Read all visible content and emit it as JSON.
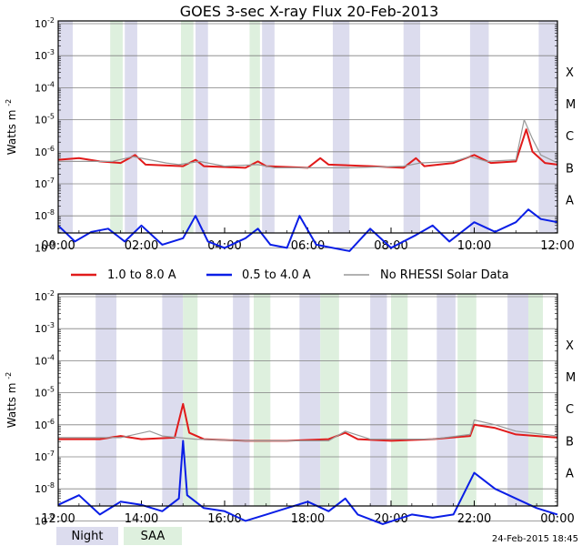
{
  "title": "GOES 3-sec X-ray Flux   20-Feb-2013",
  "ylabel": "Watts m",
  "ylabel_exp": "-2",
  "ytick_labels": [
    {
      "base": "10",
      "exp": "-2"
    },
    {
      "base": "10",
      "exp": "-3"
    },
    {
      "base": "10",
      "exp": "-4"
    },
    {
      "base": "10",
      "exp": "-5"
    },
    {
      "base": "10",
      "exp": "-6"
    },
    {
      "base": "10",
      "exp": "-7"
    },
    {
      "base": "10",
      "exp": "-8"
    },
    {
      "base": "10",
      "exp": "-9"
    }
  ],
  "flare_classes": [
    "X",
    "M",
    "C",
    "B",
    "A"
  ],
  "legend": {
    "series1": "1.0 to 8.0 A",
    "series2": "0.5 to 4.0 A",
    "series3": "No RHESSI Solar Data",
    "night": "Night",
    "saa": "SAA"
  },
  "footer_timestamp": "24-Feb-2015 18:45",
  "colors": {
    "long_channel": "#e11b1b",
    "short_channel": "#0a1ee6",
    "no_data": "#999999",
    "night": "#dcdcee",
    "saa": "#def0de",
    "grid": "#808080"
  },
  "chart_data": [
    {
      "type": "line",
      "panel": "top",
      "xlabels": [
        "00:00",
        "02:00",
        "04:00",
        "06:00",
        "08:00",
        "10:00",
        "12:00"
      ],
      "xlim_hours": [
        0,
        12
      ],
      "ylim_log10": [
        -9.2,
        -2
      ],
      "night_bands_hours": [
        [
          0.0,
          0.35
        ],
        [
          1.6,
          1.9
        ],
        [
          3.3,
          3.6
        ],
        [
          4.9,
          5.2
        ],
        [
          6.6,
          7.0
        ],
        [
          8.3,
          8.7
        ],
        [
          9.9,
          10.35
        ],
        [
          11.55,
          12.0
        ]
      ],
      "saa_bands_hours": [
        [
          1.25,
          1.55
        ],
        [
          2.95,
          3.25
        ],
        [
          4.6,
          4.85
        ]
      ],
      "series": [
        {
          "name": "1.0 to 8.0 A",
          "color": "#e11b1b",
          "points": [
            [
              0.0,
              -6.25
            ],
            [
              0.5,
              -6.2
            ],
            [
              1.0,
              -6.3
            ],
            [
              1.5,
              -6.35
            ],
            [
              1.85,
              -6.1
            ],
            [
              2.1,
              -6.4
            ],
            [
              3.0,
              -6.45
            ],
            [
              3.3,
              -6.25
            ],
            [
              3.5,
              -6.45
            ],
            [
              4.5,
              -6.5
            ],
            [
              4.8,
              -6.3
            ],
            [
              5.0,
              -6.45
            ],
            [
              6.0,
              -6.5
            ],
            [
              6.3,
              -6.2
            ],
            [
              6.5,
              -6.4
            ],
            [
              7.5,
              -6.45
            ],
            [
              8.3,
              -6.5
            ],
            [
              8.6,
              -6.2
            ],
            [
              8.8,
              -6.45
            ],
            [
              9.5,
              -6.35
            ],
            [
              10.0,
              -6.1
            ],
            [
              10.4,
              -6.35
            ],
            [
              11.0,
              -6.3
            ],
            [
              11.25,
              -5.3
            ],
            [
              11.4,
              -6.0
            ],
            [
              11.7,
              -6.35
            ],
            [
              12.0,
              -6.4
            ]
          ]
        },
        {
          "name": "0.5 to 4.0 A",
          "color": "#0a1ee6",
          "points": [
            [
              0.0,
              -8.3
            ],
            [
              0.4,
              -8.8
            ],
            [
              0.8,
              -8.5
            ],
            [
              1.2,
              -8.4
            ],
            [
              1.6,
              -8.8
            ],
            [
              2.0,
              -8.3
            ],
            [
              2.5,
              -8.9
            ],
            [
              3.0,
              -8.7
            ],
            [
              3.3,
              -8.0
            ],
            [
              3.6,
              -8.8
            ],
            [
              4.0,
              -9.0
            ],
            [
              4.5,
              -8.7
            ],
            [
              4.8,
              -8.4
            ],
            [
              5.1,
              -8.9
            ],
            [
              5.5,
              -9.0
            ],
            [
              5.8,
              -8.0
            ],
            [
              6.2,
              -8.9
            ],
            [
              7.0,
              -9.1
            ],
            [
              7.5,
              -8.4
            ],
            [
              8.0,
              -9.0
            ],
            [
              8.6,
              -8.6
            ],
            [
              9.0,
              -8.3
            ],
            [
              9.4,
              -8.8
            ],
            [
              10.0,
              -8.2
            ],
            [
              10.5,
              -8.5
            ],
            [
              11.0,
              -8.2
            ],
            [
              11.3,
              -7.8
            ],
            [
              11.6,
              -8.1
            ],
            [
              12.0,
              -8.2
            ]
          ]
        },
        {
          "name": "No RHESSI Solar Data",
          "color": "#999999",
          "points": [
            [
              0.0,
              -6.3
            ],
            [
              1.3,
              -6.3
            ],
            [
              1.8,
              -6.15
            ],
            [
              2.6,
              -6.35
            ],
            [
              2.9,
              -6.4
            ],
            [
              3.4,
              -6.3
            ],
            [
              4.0,
              -6.45
            ],
            [
              4.8,
              -6.4
            ],
            [
              5.2,
              -6.5
            ],
            [
              6.5,
              -6.5
            ],
            [
              7.0,
              -6.5
            ],
            [
              8.3,
              -6.45
            ],
            [
              8.7,
              -6.35
            ],
            [
              9.5,
              -6.3
            ],
            [
              9.9,
              -6.15
            ],
            [
              10.3,
              -6.3
            ],
            [
              11.0,
              -6.25
            ],
            [
              11.2,
              -5.0
            ],
            [
              11.4,
              -5.6
            ],
            [
              11.6,
              -6.1
            ],
            [
              12.0,
              -6.35
            ]
          ]
        }
      ]
    },
    {
      "type": "line",
      "panel": "bottom",
      "xlabels": [
        "12:00",
        "14:00",
        "16:00",
        "18:00",
        "20:00",
        "22:00",
        "00:00"
      ],
      "xlim_hours": [
        12,
        24
      ],
      "ylim_log10": [
        -9.2,
        -2
      ],
      "night_bands_hours": [
        [
          12.9,
          13.4
        ],
        [
          14.5,
          15.0
        ],
        [
          16.2,
          16.6
        ],
        [
          17.8,
          18.3
        ],
        [
          19.5,
          19.9
        ],
        [
          21.1,
          21.55
        ],
        [
          22.8,
          23.3
        ]
      ],
      "saa_bands_hours": [
        [
          15.0,
          15.35
        ],
        [
          16.7,
          17.1
        ],
        [
          18.3,
          18.75
        ],
        [
          20.0,
          20.4
        ],
        [
          21.6,
          22.05
        ],
        [
          23.3,
          23.65
        ]
      ],
      "series": [
        {
          "name": "1.0 to 8.0 A",
          "color": "#e11b1b",
          "points": [
            [
              12.0,
              -6.45
            ],
            [
              13.0,
              -6.45
            ],
            [
              13.5,
              -6.35
            ],
            [
              14.0,
              -6.45
            ],
            [
              14.8,
              -6.4
            ],
            [
              15.0,
              -5.35
            ],
            [
              15.15,
              -6.25
            ],
            [
              15.5,
              -6.45
            ],
            [
              16.5,
              -6.5
            ],
            [
              17.5,
              -6.5
            ],
            [
              18.5,
              -6.45
            ],
            [
              18.9,
              -6.25
            ],
            [
              19.2,
              -6.45
            ],
            [
              20.0,
              -6.5
            ],
            [
              21.0,
              -6.45
            ],
            [
              21.9,
              -6.35
            ],
            [
              22.0,
              -6.0
            ],
            [
              22.5,
              -6.1
            ],
            [
              23.0,
              -6.3
            ],
            [
              23.5,
              -6.35
            ],
            [
              24.0,
              -6.4
            ]
          ]
        },
        {
          "name": "0.5 to 4.0 A",
          "color": "#0a1ee6",
          "points": [
            [
              12.0,
              -8.5
            ],
            [
              12.5,
              -8.2
            ],
            [
              13.0,
              -8.8
            ],
            [
              13.5,
              -8.4
            ],
            [
              14.0,
              -8.5
            ],
            [
              14.5,
              -8.7
            ],
            [
              14.9,
              -8.3
            ],
            [
              15.0,
              -6.5
            ],
            [
              15.1,
              -8.2
            ],
            [
              15.5,
              -8.6
            ],
            [
              16.0,
              -8.7
            ],
            [
              16.5,
              -9.0
            ],
            [
              17.0,
              -8.8
            ],
            [
              17.5,
              -8.6
            ],
            [
              18.0,
              -8.4
            ],
            [
              18.5,
              -8.7
            ],
            [
              18.9,
              -8.3
            ],
            [
              19.2,
              -8.8
            ],
            [
              19.8,
              -9.1
            ],
            [
              20.5,
              -8.8
            ],
            [
              21.0,
              -8.9
            ],
            [
              21.5,
              -8.8
            ],
            [
              22.0,
              -7.5
            ],
            [
              22.5,
              -8.0
            ],
            [
              23.0,
              -8.3
            ],
            [
              23.5,
              -8.6
            ],
            [
              24.0,
              -8.8
            ]
          ]
        },
        {
          "name": "No RHESSI Solar Data",
          "color": "#999999",
          "points": [
            [
              12.0,
              -6.4
            ],
            [
              13.5,
              -6.4
            ],
            [
              14.2,
              -6.2
            ],
            [
              14.5,
              -6.35
            ],
            [
              15.3,
              -6.45
            ],
            [
              16.5,
              -6.5
            ],
            [
              18.5,
              -6.5
            ],
            [
              18.9,
              -6.2
            ],
            [
              19.5,
              -6.45
            ],
            [
              21.0,
              -6.45
            ],
            [
              21.9,
              -6.3
            ],
            [
              22.0,
              -5.85
            ],
            [
              22.5,
              -6.0
            ],
            [
              23.0,
              -6.2
            ],
            [
              24.0,
              -6.35
            ]
          ]
        }
      ]
    }
  ]
}
